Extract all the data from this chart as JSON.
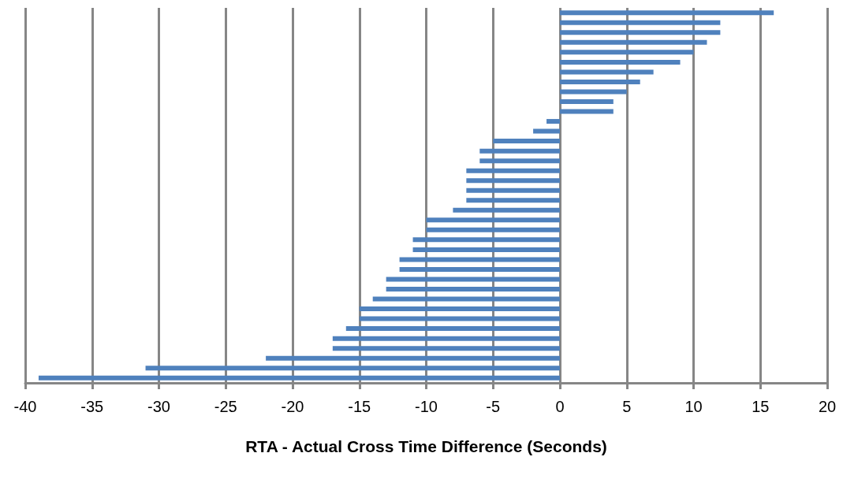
{
  "chart_data": {
    "type": "bar",
    "orientation": "horizontal",
    "xlabel": "RTA - Actual Cross Time Difference (Seconds)",
    "categories": [
      null,
      null,
      null,
      null,
      null,
      null,
      null,
      null,
      null,
      null,
      null,
      null,
      null,
      null,
      null,
      null,
      null,
      null,
      null,
      null,
      null,
      null,
      null,
      null,
      null,
      null,
      null,
      null,
      null,
      null,
      null,
      null,
      null,
      null,
      null,
      null,
      null,
      null
    ],
    "values": [
      16,
      12,
      12,
      11,
      10,
      9,
      7,
      6,
      5,
      4,
      4,
      -1,
      -2,
      -5,
      -6,
      -6,
      -7,
      -7,
      -7,
      -7,
      -8,
      -10,
      -10,
      -11,
      -11,
      -12,
      -12,
      -13,
      -13,
      -14,
      -15,
      -15,
      -16,
      -17,
      -17,
      -22,
      -31,
      -39
    ],
    "color": "#4f81bd",
    "xlim": [
      -40,
      20
    ],
    "xticks": [
      -40,
      -35,
      -30,
      -25,
      -20,
      -15,
      -10,
      -5,
      0,
      5,
      10,
      15,
      20
    ],
    "grid": "x",
    "tick_labels": "x"
  }
}
